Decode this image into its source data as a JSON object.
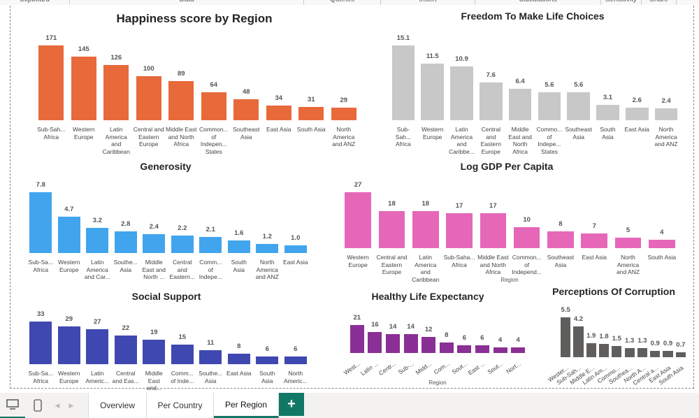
{
  "ribbon": [
    "Clipboard",
    "Data",
    "Queries",
    "Insert",
    "Calculations",
    "Sensitivity",
    "Share"
  ],
  "tabs": {
    "overview": "Overview",
    "per_country": "Per Country",
    "per_region": "Per Region",
    "add": "+"
  },
  "chart_data": [
    {
      "id": "happiness",
      "type": "bar",
      "title": "Happiness score by Region",
      "color": "#e8693a",
      "categories": [
        "Sub-Sah... Africa",
        "Western Europe",
        "Latin America and Caribbean",
        "Central and Eastern Europe",
        "Middle East and North Africa",
        "Common... of Indepen... States",
        "Southeast Asia",
        "East Asia",
        "South Asia",
        "North America and ANZ"
      ],
      "values": [
        171,
        145,
        126,
        100,
        89,
        64,
        48,
        34,
        31,
        29
      ],
      "labels": [
        "171",
        "145",
        "126",
        "100",
        "89",
        "64",
        "48",
        "34",
        "31",
        "29"
      ],
      "xlabel": ""
    },
    {
      "id": "freedom",
      "type": "bar",
      "title": "Freedom To Make Life Choices",
      "color": "#c8c8c8",
      "categories": [
        "Sub-Sah... Africa",
        "Western Europe",
        "Latin America and Caribbe...",
        "Central and Eastern Europe",
        "Middle East and North Africa",
        "Commo... of Indepe... States",
        "Southeast Asia",
        "South Asia",
        "East Asia",
        "North America and ANZ"
      ],
      "values": [
        15.1,
        11.5,
        10.9,
        7.6,
        6.4,
        5.6,
        5.6,
        3.1,
        2.6,
        2.4
      ],
      "labels": [
        "15.1",
        "11.5",
        "10.9",
        "7.6",
        "6.4",
        "5.6",
        "5.6",
        "3.1",
        "2.6",
        "2.4"
      ],
      "xlabel": ""
    },
    {
      "id": "generosity",
      "type": "bar",
      "title": "Generosity",
      "color": "#41a5ee",
      "categories": [
        "Sub-Sa... Africa",
        "Western Europe",
        "Latin America and Car...",
        "Southe... Asia",
        "Middle East and North ...",
        "Central and Eastern...",
        "Comm... of Indepe...",
        "South Asia",
        "North America and ANZ",
        "East Asia"
      ],
      "values": [
        7.8,
        4.7,
        3.2,
        2.8,
        2.4,
        2.2,
        2.1,
        1.6,
        1.2,
        1.0
      ],
      "labels": [
        "7.8",
        "4.7",
        "3.2",
        "2.8",
        "2.4",
        "2.2",
        "2.1",
        "1.6",
        "1.2",
        "1.0"
      ],
      "xlabel": ""
    },
    {
      "id": "gdp",
      "type": "bar",
      "title": "Log GDP Per Capita",
      "color": "#e667b8",
      "categories": [
        "Western Europe",
        "Central and Eastern Europe",
        "Latin America and Caribbean",
        "Sub-Saha... Africa",
        "Middle East and North Africa",
        "Common... of Independ...",
        "Southeast Asia",
        "East Asia",
        "North America and ANZ",
        "South Asia"
      ],
      "values": [
        27,
        18,
        18,
        17,
        17,
        10,
        8,
        7,
        5,
        4
      ],
      "labels": [
        "27",
        "18",
        "18",
        "17",
        "17",
        "10",
        "8",
        "7",
        "5",
        "4"
      ],
      "xlabel": "Region"
    },
    {
      "id": "social",
      "type": "bar",
      "title": "Social Support",
      "color": "#3f48b0",
      "categories": [
        "Sub-Sa... Africa",
        "Western Europe",
        "Latin Americ...",
        "Central and Eas...",
        "Middle East and...",
        "Comm... of Inde...",
        "Southe... Asia",
        "East Asia",
        "South Asia",
        "North Americ..."
      ],
      "values": [
        33,
        29,
        27,
        22,
        19,
        15,
        11,
        8,
        6,
        6
      ],
      "labels": [
        "33",
        "29",
        "27",
        "22",
        "19",
        "15",
        "11",
        "8",
        "6",
        "6"
      ],
      "xlabel": ""
    },
    {
      "id": "life",
      "type": "bar",
      "title": "Healthy Life Expectancy",
      "color": "#8a2f95",
      "categories": [
        "West...",
        "Latin ...",
        "Centr...",
        "Sub-...",
        "Midd...",
        "Com...",
        "Sout...",
        "East ...",
        "Sout...",
        "Nort..."
      ],
      "values": [
        21,
        16,
        14,
        14,
        12,
        8,
        6,
        6,
        4,
        4
      ],
      "labels": [
        "21",
        "16",
        "14",
        "14",
        "12",
        "8",
        "6",
        "6",
        "4",
        "4"
      ],
      "xlabel": "Region"
    },
    {
      "id": "corruption",
      "type": "bar",
      "title": "Perceptions Of Corruption",
      "color": "#605e5c",
      "categories": [
        "Wester...",
        "Sub-Sah...",
        "Middle E...",
        "Latin Am...",
        "Commo...",
        "Southea...",
        "North A...",
        "Central a...",
        "East Asia",
        "South Asia"
      ],
      "values": [
        5.5,
        4.2,
        1.9,
        1.8,
        1.5,
        1.3,
        1.3,
        0.9,
        0.9,
        0.7
      ],
      "labels": [
        "5.5",
        "4.2",
        "1.9",
        "1.8",
        "1.5",
        "1.3",
        "1.3",
        "0.9",
        "0.9",
        "0.7"
      ],
      "xlabel": ""
    }
  ]
}
